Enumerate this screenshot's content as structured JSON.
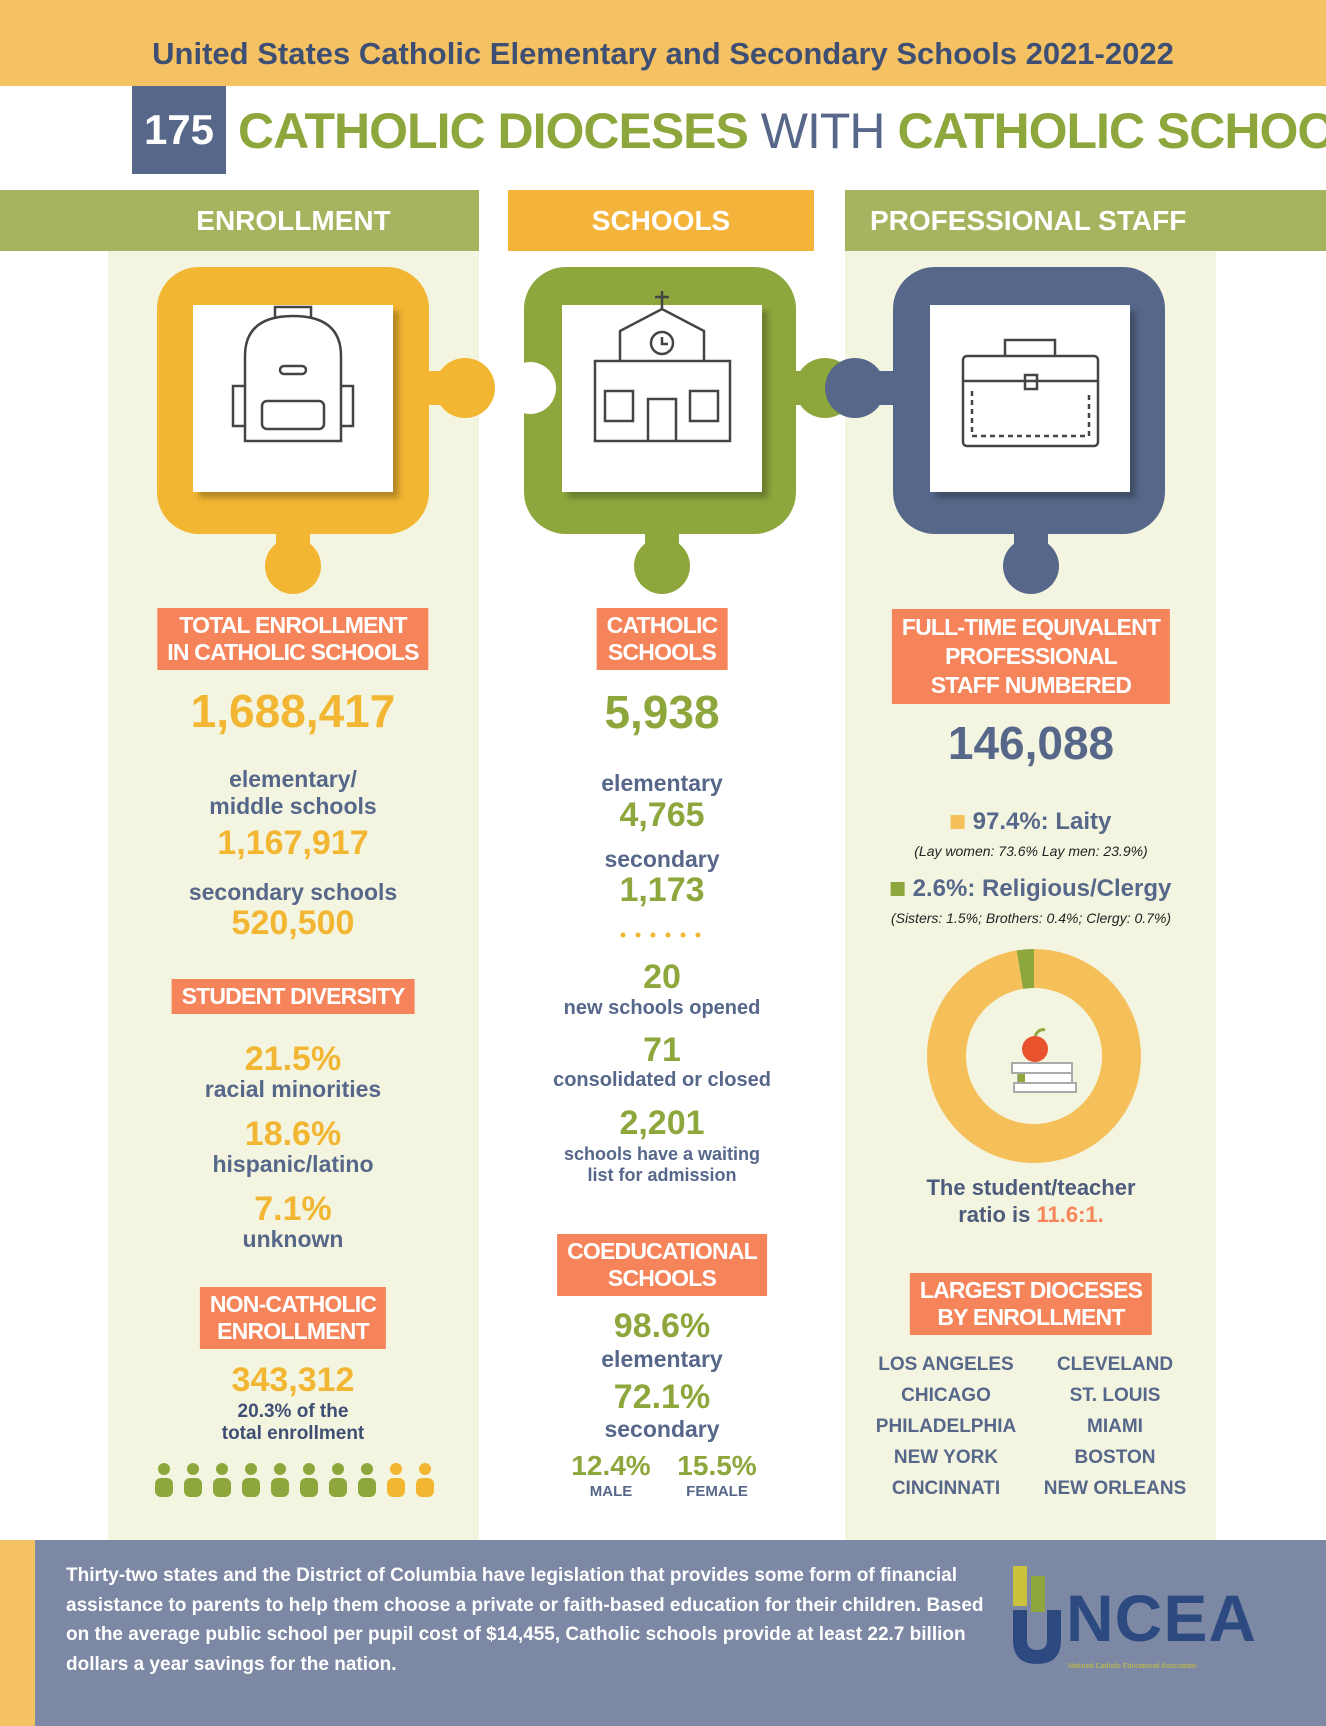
{
  "header": {
    "title": "United States Catholic Elementary and Secondary Schools 2021-2022",
    "count": "175",
    "heading_1": "CATHOLIC DIOCESES",
    "heading_2": "WITH",
    "heading_3": "CATHOLIC SCHOOLS"
  },
  "enrollment": {
    "title": "ENROLLMENT",
    "total_label": [
      "TOTAL ENROLLMENT",
      "IN CATHOLIC SCHOOLS"
    ],
    "total": "1,688,417",
    "elementary_label": [
      "elementary/",
      "middle schools"
    ],
    "elementary": "1,167,917",
    "secondary_label": "secondary schools",
    "secondary": "520,500",
    "diversity_label": "STUDENT DIVERSITY",
    "diversity": [
      {
        "value": "21.5%",
        "label": "racial minorities"
      },
      {
        "value": "18.6%",
        "label": "hispanic/latino"
      },
      {
        "value": "7.1%",
        "label": "unknown"
      }
    ],
    "non_catholic_label": [
      "NON-CATHOLIC",
      "ENROLLMENT"
    ],
    "non_catholic": "343,312",
    "non_catholic_share": [
      "20.3% of the",
      "total enrollment"
    ]
  },
  "schools": {
    "title": "SCHOOLS",
    "total_label": [
      "CATHOLIC",
      "SCHOOLS"
    ],
    "total": "5,938",
    "elementary_label": "elementary",
    "elementary": "4,765",
    "secondary_label": "secondary",
    "secondary": "1,173",
    "opened": "20",
    "opened_label": "new schools opened",
    "closed": "71",
    "closed_label": "consolidated or closed",
    "waiting": "2,201",
    "waiting_label": [
      "schools have a waiting",
      "list for admission"
    ],
    "coed_label": [
      "COEDUCATIONAL",
      "SCHOOLS"
    ],
    "coed_elementary": "98.6%",
    "coed_elementary_label": "elementary",
    "coed_secondary": "72.1%",
    "coed_secondary_label": "secondary",
    "male": "12.4%",
    "male_label": "MALE",
    "female": "15.5%",
    "female_label": "FEMALE"
  },
  "staff": {
    "title": "PROFESSIONAL STAFF",
    "total_label": [
      "FULL-TIME EQUIVALENT",
      "PROFESSIONAL",
      "STAFF NUMBERED"
    ],
    "total": "146,088",
    "donut": {
      "segments": [
        {
          "value": 97.4,
          "label": "97.4%: Laity",
          "detail": "(Lay women: 73.6%  Lay men: 23.9%)",
          "color": "#f5c05a"
        },
        {
          "value": 2.6,
          "label": "2.6%: Religious/Clergy",
          "detail": "(Sisters: 1.5%; Brothers: 0.4%;  Clergy: 0.7%)",
          "color": "#8ea73d"
        }
      ]
    },
    "ratio_text_1": "The student/teacher",
    "ratio_text_2": "ratio is",
    "ratio": "11.6:1.",
    "dioceses_label": [
      "LARGEST DIOCESES",
      "BY ENROLLMENT"
    ],
    "dioceses": [
      [
        "LOS ANGELES",
        "CHICAGO",
        "PHILADELPHIA",
        "NEW YORK",
        "CINCINNATI"
      ],
      [
        "CLEVELAND",
        "ST. LOUIS",
        "MIAMI",
        "BOSTON",
        "NEW ORLEANS"
      ]
    ]
  },
  "footer": {
    "parts": [
      {
        "text": "Thirty-two states and the District of Columbia have legislation that provides some form of financial assistance to parents to help them choose a private or faith-based education for their children. Based on the average public school per pupil cost of ",
        "strong": false
      },
      {
        "text": "$14,455,",
        "strong": true
      },
      {
        "text": " Catholic schools provide at least ",
        "strong": false
      },
      {
        "text": "22.7 billion dollars",
        "strong": true
      },
      {
        "text": " a year savings for the nation.",
        "strong": false
      }
    ],
    "logo": "NCEA",
    "logo_tagline": "National Catholic Educational Association"
  }
}
